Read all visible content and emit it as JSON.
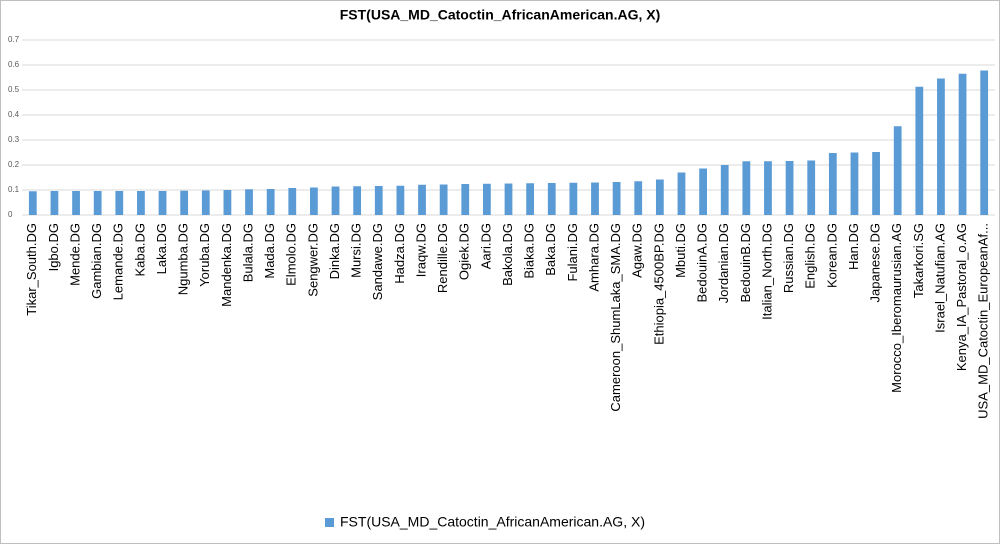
{
  "chart_data": {
    "type": "bar",
    "title": "FST(USA_MD_Catoctin_AfricanAmerican.AG, X)",
    "categories": [
      "Tikar_South.DG",
      "Igbo.DG",
      "Mende.DG",
      "Gambian.DG",
      "Lemande.DG",
      "Kaba.DG",
      "Laka.DG",
      "Ngumba.DG",
      "Yoruba.DG",
      "Mandenka.DG",
      "Bulala.DG",
      "Mada.DG",
      "Elmolo.DG",
      "Sengwer.DG",
      "Dinka.DG",
      "Mursi.DG",
      "Sandawe.DG",
      "Hadza.DG",
      "Iraqw.DG",
      "Rendille.DG",
      "Ogiek.DG",
      "Aari.DG",
      "Bakola.DG",
      "Biaka.DG",
      "Baka.DG",
      "Fulani.DG",
      "Amhara.DG",
      "Cameroon_ShumLaka_SMA.DG",
      "Agaw.DG",
      "Ethiopia_4500BP.DG",
      "Mbuti.DG",
      "BedouinA.DG",
      "Jordanian.DG",
      "BedouinB.DG",
      "Italian_North.DG",
      "Russian.DG",
      "English.DG",
      "Korean.DG",
      "Han.DG",
      "Japanese.DG",
      "Morocco_Iberomaurusian.AG",
      "Takarkori.SG",
      "Israel_Natufian.AG",
      "Kenya_IA_Pastoral_o.AG",
      "USA_MD_Catoctin_EuropeanAf..."
    ],
    "series": [
      {
        "name": "FST(USA_MD_Catoctin_AfricanAmerican.AG, X)",
        "color": "#5b9bd5",
        "values": [
          0.095,
          0.096,
          0.096,
          0.096,
          0.096,
          0.096,
          0.096,
          0.097,
          0.098,
          0.1,
          0.103,
          0.104,
          0.108,
          0.11,
          0.114,
          0.115,
          0.116,
          0.117,
          0.121,
          0.122,
          0.124,
          0.125,
          0.126,
          0.127,
          0.128,
          0.129,
          0.13,
          0.132,
          0.135,
          0.142,
          0.17,
          0.186,
          0.2,
          0.215,
          0.215,
          0.216,
          0.218,
          0.248,
          0.25,
          0.252,
          0.355,
          0.513,
          0.546,
          0.565,
          0.578
        ]
      }
    ],
    "ylim": [
      0,
      0.7
    ],
    "yticks": [
      0,
      0.1,
      0.2,
      0.3,
      0.4,
      0.5,
      0.6,
      0.7
    ],
    "grid": true,
    "legend": "bottom"
  }
}
